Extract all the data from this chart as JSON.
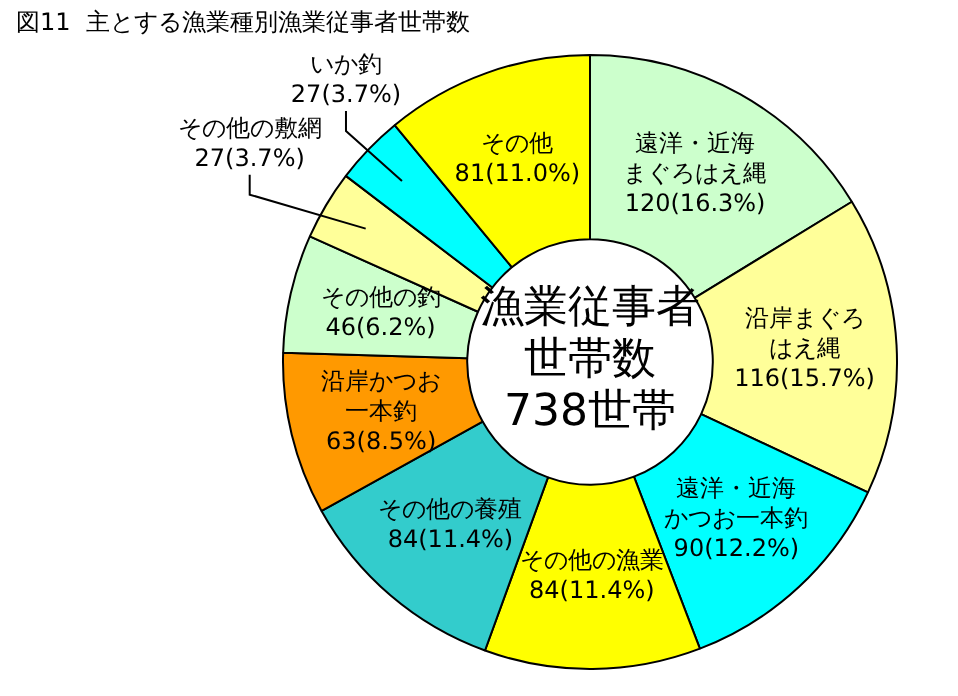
{
  "chart_data": {
    "type": "donut",
    "title": "図11  主とする漁業種別漁業従事者世帯数",
    "categories": [
      "遠洋・近海まぐろはえ縄",
      "沿岸まぐろはえ縄",
      "遠洋・近海かつお一本釣",
      "その他の漁業",
      "その他の養殖",
      "沿岸かつお一本釣",
      "その他の釣",
      "その他の敷網",
      "いか釣",
      "その他"
    ],
    "values": [
      120,
      116,
      90,
      84,
      84,
      63,
      46,
      27,
      27,
      81
    ],
    "value_labels": [
      "120(16.3%)",
      "116(15.7%)",
      "90(12.2%)",
      "84(11.4%)",
      "84(11.4%)",
      "63(8.5%)",
      "46(6.2%)",
      "27(3.7%)",
      "27(3.7%)",
      "81(11.0%)"
    ],
    "colors": [
      "#ccffcc",
      "#ffff99",
      "#00ffff",
      "#ffff00",
      "#33cccc",
      "#ff9900",
      "#ccffcc",
      "#ffff99",
      "#00ffff",
      "#ffff00"
    ],
    "annotations": [
      "漁業従事者",
      "世帯数",
      "738世帯"
    ],
    "legend": false
  }
}
